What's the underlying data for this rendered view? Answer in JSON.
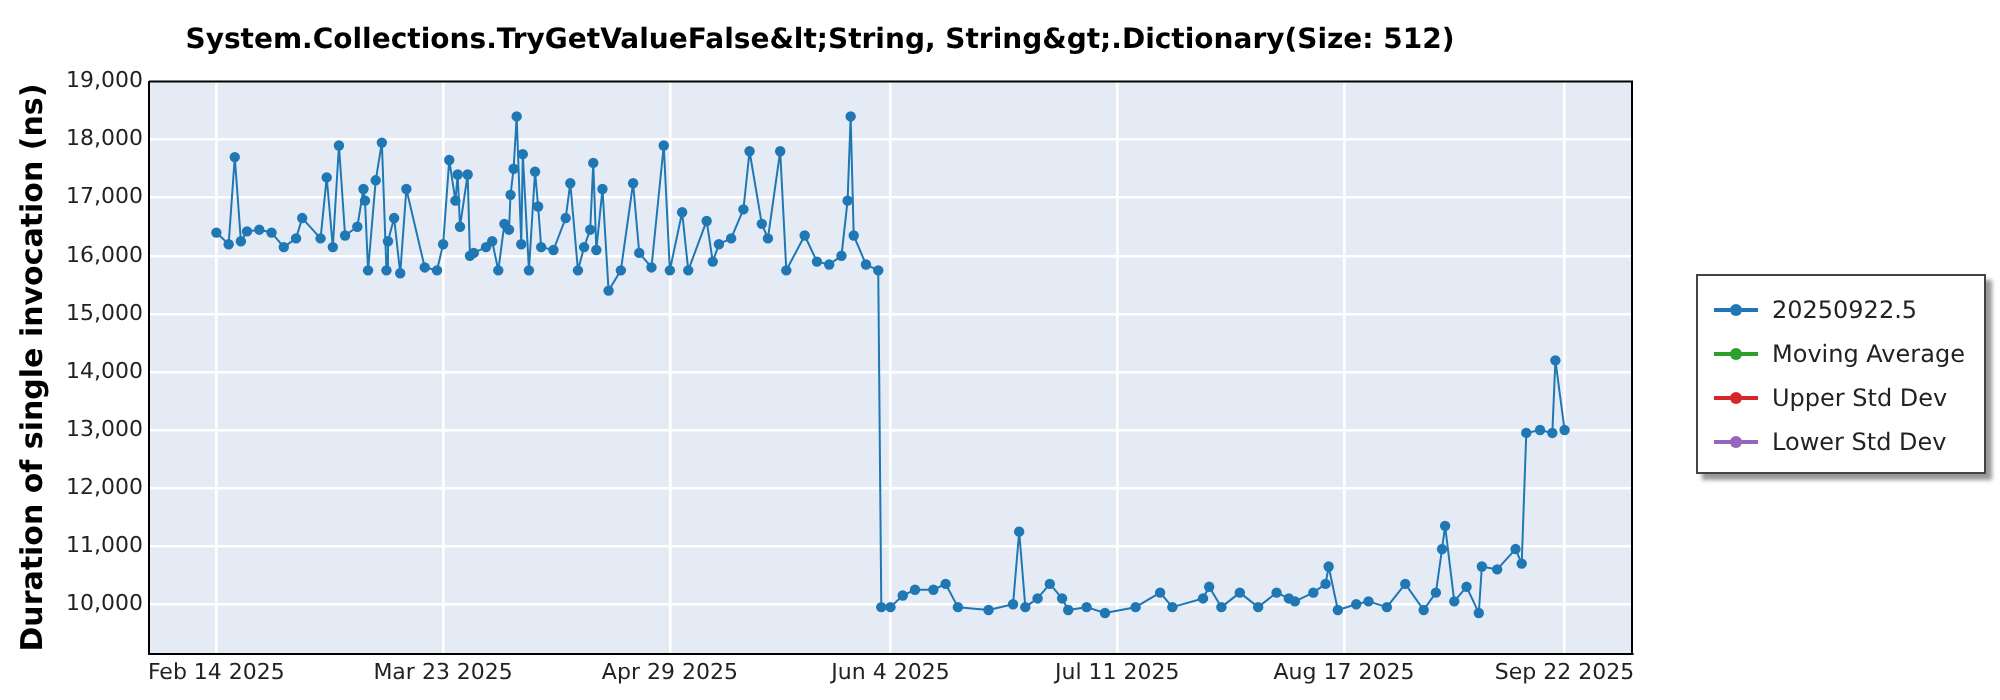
{
  "chart_data": {
    "type": "line",
    "title": "System.Collections.TryGetValueFalse&lt;String, String&gt;.Dictionary(Size: 512)",
    "ylabel": "Duration of single invocation (ns)",
    "xlim": [
      "2025-02-03",
      "2025-10-03"
    ],
    "ylim": [
      9150,
      19000
    ],
    "xticks": [
      {
        "value": "2025-02-14",
        "label": "Feb 14 2025"
      },
      {
        "value": "2025-03-23",
        "label": "Mar 23 2025"
      },
      {
        "value": "2025-04-29",
        "label": "Apr 29 2025"
      },
      {
        "value": "2025-06-04",
        "label": "Jun 4 2025"
      },
      {
        "value": "2025-07-11",
        "label": "Jul 11 2025"
      },
      {
        "value": "2025-08-17",
        "label": "Aug 17 2025"
      },
      {
        "value": "2025-09-22",
        "label": "Sep 22 2025"
      }
    ],
    "yticks": [
      {
        "value": 10000,
        "label": "10,000"
      },
      {
        "value": 11000,
        "label": "11,000"
      },
      {
        "value": 12000,
        "label": "12,000"
      },
      {
        "value": 13000,
        "label": "13,000"
      },
      {
        "value": 14000,
        "label": "14,000"
      },
      {
        "value": 15000,
        "label": "15,000"
      },
      {
        "value": 16000,
        "label": "16,000"
      },
      {
        "value": 17000,
        "label": "17,000"
      },
      {
        "value": 18000,
        "label": "18,000"
      },
      {
        "value": 19000,
        "label": "19,000"
      }
    ],
    "grid": true,
    "legend": "right",
    "marker": "circle",
    "line_style": "solid",
    "series": [
      {
        "name": "20250922.5",
        "color": "#1f77b4",
        "x": [
          "2025-02-14",
          "2025-02-16",
          "2025-02-17",
          "2025-02-18",
          "2025-02-19",
          "2025-02-21",
          "2025-02-23",
          "2025-02-25",
          "2025-02-27",
          "2025-02-28",
          "2025-03-03",
          "2025-03-04",
          "2025-03-05",
          "2025-03-06",
          "2025-03-07",
          "2025-03-09",
          "2025-03-10",
          "2025-03-10T06:00",
          "2025-03-10T18:00",
          "2025-03-12",
          "2025-03-13",
          "2025-03-13T18:00",
          "2025-03-14",
          "2025-03-15",
          "2025-03-16",
          "2025-03-17",
          "2025-03-20",
          "2025-03-22",
          "2025-03-23",
          "2025-03-24",
          "2025-03-25",
          "2025-03-25T09:00",
          "2025-03-25T18:00",
          "2025-03-27",
          "2025-03-27T09:00",
          "2025-03-28",
          "2025-03-30",
          "2025-03-31",
          "2025-04-01",
          "2025-04-02",
          "2025-04-02T18:00",
          "2025-04-03",
          "2025-04-03T12:00",
          "2025-04-04",
          "2025-04-04T18:00",
          "2025-04-05",
          "2025-04-06",
          "2025-04-07",
          "2025-04-07T12:00",
          "2025-04-08",
          "2025-04-10",
          "2025-04-12",
          "2025-04-12T18:00",
          "2025-04-14",
          "2025-04-15",
          "2025-04-16",
          "2025-04-16T12:00",
          "2025-04-17",
          "2025-04-18",
          "2025-04-19",
          "2025-04-21",
          "2025-04-23",
          "2025-04-24",
          "2025-04-26",
          "2025-04-28",
          "2025-04-29",
          "2025-05-01",
          "2025-05-02",
          "2025-05-05",
          "2025-05-06",
          "2025-05-07",
          "2025-05-09",
          "2025-05-11",
          "2025-05-12",
          "2025-05-14",
          "2025-05-15",
          "2025-05-17",
          "2025-05-18",
          "2025-05-21",
          "2025-05-23",
          "2025-05-25",
          "2025-05-27",
          "2025-05-28",
          "2025-05-28T12:00",
          "2025-05-29",
          "2025-05-31",
          "2025-06-02",
          "2025-06-02T12:00",
          "2025-06-04",
          "2025-06-06",
          "2025-06-08",
          "2025-06-11",
          "2025-06-13",
          "2025-06-15",
          "2025-06-20",
          "2025-06-24",
          "2025-06-25",
          "2025-06-26",
          "2025-06-28",
          "2025-06-30",
          "2025-07-02",
          "2025-07-03",
          "2025-07-06",
          "2025-07-09",
          "2025-07-14",
          "2025-07-18",
          "2025-07-20",
          "2025-07-25",
          "2025-07-26",
          "2025-07-28",
          "2025-07-31",
          "2025-08-03",
          "2025-08-06",
          "2025-08-08",
          "2025-08-09",
          "2025-08-12",
          "2025-08-14",
          "2025-08-14T12:00",
          "2025-08-16",
          "2025-08-19",
          "2025-08-21",
          "2025-08-24",
          "2025-08-27",
          "2025-08-30",
          "2025-09-01",
          "2025-09-02",
          "2025-09-02T12:00",
          "2025-09-04",
          "2025-09-06",
          "2025-09-08",
          "2025-09-08T12:00",
          "2025-09-11",
          "2025-09-14",
          "2025-09-15",
          "2025-09-15T18:00",
          "2025-09-18",
          "2025-09-20",
          "2025-09-20T12:00",
          "2025-09-22"
        ],
        "values": [
          16400,
          16200,
          17700,
          16250,
          16420,
          16450,
          16400,
          16150,
          16300,
          16650,
          16300,
          17350,
          16150,
          17900,
          16350,
          16500,
          17150,
          16950,
          15750,
          17300,
          17950,
          15750,
          16250,
          16650,
          15700,
          17150,
          15800,
          15750,
          16200,
          17650,
          16950,
          17400,
          16500,
          17400,
          16000,
          16050,
          16150,
          16250,
          15750,
          16550,
          16450,
          17050,
          17500,
          18400,
          16200,
          17750,
          15750,
          17450,
          16850,
          16150,
          16100,
          16650,
          17250,
          15750,
          16150,
          16450,
          17600,
          16100,
          17150,
          15400,
          15750,
          17250,
          16050,
          15800,
          17900,
          15750,
          16750,
          15750,
          16600,
          15900,
          16200,
          16300,
          16800,
          17800,
          16550,
          16300,
          17800,
          15750,
          16350,
          15900,
          15850,
          16000,
          16950,
          18400,
          16350,
          15850,
          15750,
          9950,
          9950,
          10150,
          10250,
          10250,
          10350,
          9950,
          9900,
          10000,
          11250,
          9950,
          10100,
          10350,
          10100,
          9900,
          9950,
          9850,
          9950,
          10200,
          9950,
          10100,
          10300,
          9950,
          10200,
          9950,
          10200,
          10100,
          10050,
          10200,
          10350,
          10650,
          9900,
          10000,
          10050,
          9950,
          10350,
          9900,
          10200,
          10950,
          11350,
          10050,
          10300,
          9850,
          10650,
          10600,
          10950,
          10700,
          12950,
          13000,
          12950,
          14200,
          13000
        ]
      },
      {
        "name": "Moving Average",
        "color": "#2ca02c"
      },
      {
        "name": "Upper Std Dev",
        "color": "#d62728"
      },
      {
        "name": "Lower Std Dev",
        "color": "#9467bd"
      }
    ]
  }
}
